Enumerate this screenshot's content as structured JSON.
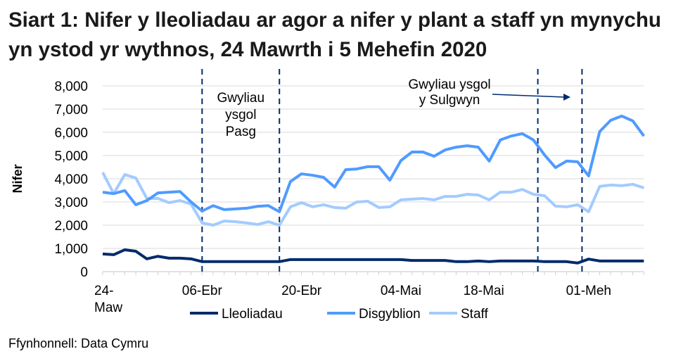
{
  "title": "Siart 1: Nifer y lleoliadau ar agor a nifer y plant a staff yn mynychu yn ystod yr wythnos, 24 Mawrth i 5 Mehefin 2020",
  "source": "Ffynhonnell: Data Cymru",
  "chart_data": {
    "type": "line",
    "title": "Siart 1: Nifer y lleoliadau ar agor a nifer y plant a staff yn mynychu yn ystod yr wythnos, 24 Mawrth i 5 Mehefin 2020",
    "xlabel": "",
    "ylabel": "Nifer",
    "ylim": [
      0,
      8000
    ],
    "y_ticks": [
      "0",
      "1,000",
      "2,000",
      "3,000",
      "4,000",
      "5,000",
      "6,000",
      "7,000",
      "8,000"
    ],
    "x_count": 50,
    "x_tick_labels": [
      {
        "label": "24-\nMaw",
        "at": 0
      },
      {
        "label": "06-Ebr",
        "at": 9
      },
      {
        "label": "20-Ebr",
        "at": 18
      },
      {
        "label": "04-Mai",
        "at": 27
      },
      {
        "label": "18-Mai",
        "at": 34.5
      },
      {
        "label": "01-Meh",
        "at": 44
      }
    ],
    "grid": true,
    "legend": "bottom",
    "series": [
      {
        "name": "Lleoliadau",
        "color": "#002b6b",
        "values": [
          760,
          730,
          940,
          880,
          550,
          660,
          580,
          580,
          550,
          430,
          430,
          430,
          430,
          430,
          430,
          430,
          430,
          520,
          520,
          520,
          520,
          520,
          520,
          520,
          520,
          520,
          520,
          520,
          480,
          480,
          480,
          480,
          430,
          430,
          460,
          430,
          460,
          460,
          460,
          460,
          430,
          430,
          430,
          370,
          540,
          460,
          460,
          460,
          460,
          460
        ]
      },
      {
        "name": "Disgyblion",
        "color": "#4f9bff",
        "values": [
          3420,
          3360,
          3490,
          2880,
          3060,
          3390,
          3420,
          3450,
          3000,
          2610,
          2840,
          2670,
          2700,
          2730,
          2810,
          2840,
          2580,
          3880,
          4210,
          4150,
          4060,
          3640,
          4390,
          4420,
          4520,
          4520,
          3940,
          4780,
          5150,
          5150,
          4970,
          5240,
          5360,
          5420,
          5360,
          4760,
          5670,
          5840,
          5940,
          5670,
          5030,
          4480,
          4760,
          4730,
          4120,
          6030,
          6520,
          6700,
          6490,
          5840
        ]
      },
      {
        "name": "Staff",
        "color": "#a3cbff",
        "values": [
          4270,
          3360,
          4180,
          4030,
          3150,
          3150,
          2970,
          3060,
          2910,
          2100,
          2000,
          2180,
          2150,
          2100,
          2030,
          2150,
          2000,
          2790,
          2970,
          2790,
          2880,
          2760,
          2730,
          3000,
          3030,
          2760,
          2790,
          3090,
          3120,
          3150,
          3090,
          3240,
          3240,
          3330,
          3300,
          3090,
          3420,
          3420,
          3540,
          3330,
          3270,
          2820,
          2790,
          2880,
          2580,
          3670,
          3730,
          3700,
          3760,
          3610
        ]
      }
    ],
    "vertical_markers": [
      9,
      16,
      39.4,
      43.4
    ],
    "annotations": [
      {
        "text": "Gwyliau\nysgol\nPasg"
      },
      {
        "text": "Gwyliau ysgol\ny Sulgwyn"
      }
    ]
  }
}
